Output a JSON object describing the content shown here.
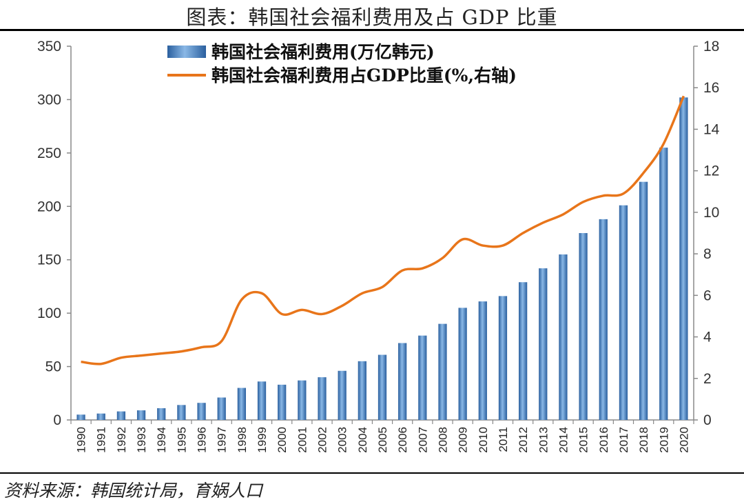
{
  "title": "图表：韩国社会福利费用及占 GDP 比重",
  "source": "资料来源：韩国统计局，育娲人口",
  "colors": {
    "bar": "#4a86c5",
    "line": "#e8751a",
    "axis": "#888888"
  },
  "chart_data": {
    "type": "bar+line",
    "categories": [
      "1990",
      "1991",
      "1992",
      "1993",
      "1994",
      "1995",
      "1996",
      "1997",
      "1998",
      "1999",
      "2000",
      "2001",
      "2002",
      "2003",
      "2004",
      "2005",
      "2006",
      "2007",
      "2008",
      "2009",
      "2010",
      "2011",
      "2012",
      "2013",
      "2014",
      "2015",
      "2016",
      "2017",
      "2018",
      "2019",
      "2020"
    ],
    "series": [
      {
        "name": "韩国社会福利费用(万亿韩元)",
        "type": "bar",
        "axis": "left",
        "values": [
          5,
          6,
          8,
          9,
          11,
          14,
          16,
          21,
          30,
          36,
          33,
          37,
          40,
          46,
          55,
          61,
          72,
          79,
          90,
          105,
          111,
          116,
          129,
          142,
          155,
          175,
          188,
          201,
          223,
          255,
          302
        ]
      },
      {
        "name": "韩国社会福利费用占GDP比重(%,右轴)",
        "type": "line",
        "axis": "right",
        "values": [
          2.8,
          2.7,
          3.0,
          3.1,
          3.2,
          3.3,
          3.5,
          3.8,
          5.8,
          6.1,
          5.1,
          5.3,
          5.1,
          5.5,
          6.1,
          6.4,
          7.2,
          7.3,
          7.8,
          8.7,
          8.4,
          8.4,
          9.0,
          9.5,
          9.9,
          10.5,
          10.8,
          10.9,
          11.9,
          13.3,
          15.6
        ]
      }
    ],
    "yLeft": {
      "min": 0,
      "max": 350,
      "ticks": [
        "0",
        "50",
        "100",
        "150",
        "200",
        "250",
        "300",
        "350"
      ]
    },
    "yRight": {
      "min": 0,
      "max": 18,
      "ticks": [
        "0",
        "2",
        "4",
        "6",
        "8",
        "10",
        "12",
        "14",
        "16",
        "18"
      ]
    },
    "legend_position": "top-center"
  }
}
